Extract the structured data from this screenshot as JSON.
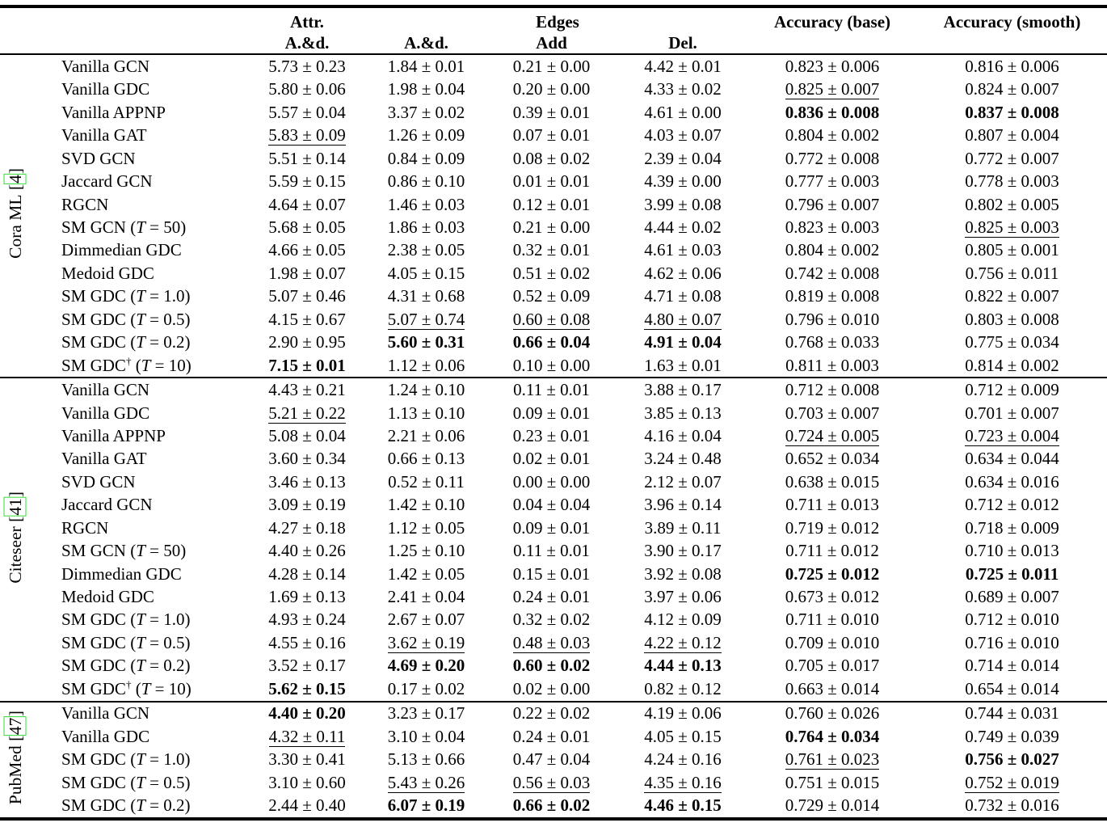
{
  "header": {
    "attr_top": "Attr.",
    "attr_sub": "A.&d.",
    "edges_top": "Edges",
    "edges_sub": [
      "A.&d.",
      "Add",
      "Del."
    ],
    "acc_base": "Accuracy (base)",
    "acc_smooth": "Accuracy (smooth)"
  },
  "symbols": {
    "dagger": "†",
    "t_var": "T",
    "bracket_open": "[",
    "bracket_close": "]"
  },
  "colors": {
    "link_green": "#33dd33",
    "text": "#000000",
    "background": "#ffffff"
  },
  "groups": [
    {
      "label": "Cora ML",
      "citation": "4",
      "rows": [
        {
          "m": "Vanilla GCN",
          "d": false,
          "t": null,
          "v": [
            "5.73 ± 0.23",
            "1.84 ± 0.01",
            "0.21 ± 0.00",
            "4.42 ± 0.01",
            "0.823 ± 0.006",
            "0.816 ± 0.006"
          ],
          "s": [
            "",
            "",
            "",
            "",
            "",
            ""
          ]
        },
        {
          "m": "Vanilla GDC",
          "d": false,
          "t": null,
          "v": [
            "5.80 ± 0.06",
            "1.98 ± 0.04",
            "0.20 ± 0.00",
            "4.33 ± 0.02",
            "0.825 ± 0.007",
            "0.824 ± 0.007"
          ],
          "s": [
            "",
            "",
            "",
            "",
            "u",
            ""
          ]
        },
        {
          "m": "Vanilla APPNP",
          "d": false,
          "t": null,
          "v": [
            "5.57 ± 0.04",
            "3.37 ± 0.02",
            "0.39 ± 0.01",
            "4.61 ± 0.00",
            "0.836 ± 0.008",
            "0.837 ± 0.008"
          ],
          "s": [
            "",
            "",
            "",
            "",
            "b",
            "b"
          ]
        },
        {
          "m": "Vanilla GAT",
          "d": false,
          "t": null,
          "v": [
            "5.83 ± 0.09",
            "1.26 ± 0.09",
            "0.07 ± 0.01",
            "4.03 ± 0.07",
            "0.804 ± 0.002",
            "0.807 ± 0.004"
          ],
          "s": [
            "u",
            "",
            "",
            "",
            "",
            ""
          ]
        },
        {
          "m": "SVD GCN",
          "d": false,
          "t": null,
          "v": [
            "5.51 ± 0.14",
            "0.84 ± 0.09",
            "0.08 ± 0.02",
            "2.39 ± 0.04",
            "0.772 ± 0.008",
            "0.772 ± 0.007"
          ],
          "s": [
            "",
            "",
            "",
            "",
            "",
            ""
          ]
        },
        {
          "m": "Jaccard GCN",
          "d": false,
          "t": null,
          "v": [
            "5.59 ± 0.15",
            "0.86 ± 0.10",
            "0.01 ± 0.01",
            "4.39 ± 0.00",
            "0.777 ± 0.003",
            "0.778 ± 0.003"
          ],
          "s": [
            "",
            "",
            "",
            "",
            "",
            ""
          ]
        },
        {
          "m": "RGCN",
          "d": false,
          "t": null,
          "v": [
            "4.64 ± 0.07",
            "1.46 ± 0.03",
            "0.12 ± 0.01",
            "3.99 ± 0.08",
            "0.796 ± 0.007",
            "0.802 ± 0.005"
          ],
          "s": [
            "",
            "",
            "",
            "",
            "",
            ""
          ]
        },
        {
          "m": "SM GCN",
          "d": false,
          "t": "50",
          "v": [
            "5.68 ± 0.05",
            "1.86 ± 0.03",
            "0.21 ± 0.00",
            "4.44 ± 0.02",
            "0.823 ± 0.003",
            "0.825 ± 0.003"
          ],
          "s": [
            "",
            "",
            "",
            "",
            "",
            "u"
          ]
        },
        {
          "m": "Dimmedian GDC",
          "d": false,
          "t": null,
          "v": [
            "4.66 ± 0.05",
            "2.38 ± 0.05",
            "0.32 ± 0.01",
            "4.61 ± 0.03",
            "0.804 ± 0.002",
            "0.805 ± 0.001"
          ],
          "s": [
            "",
            "",
            "",
            "",
            "",
            ""
          ]
        },
        {
          "m": "Medoid GDC",
          "d": false,
          "t": null,
          "v": [
            "1.98 ± 0.07",
            "4.05 ± 0.15",
            "0.51 ± 0.02",
            "4.62 ± 0.06",
            "0.742 ± 0.008",
            "0.756 ± 0.011"
          ],
          "s": [
            "",
            "",
            "",
            "",
            "",
            ""
          ]
        },
        {
          "m": "SM GDC",
          "d": false,
          "t": "1.0",
          "v": [
            "5.07 ± 0.46",
            "4.31 ± 0.68",
            "0.52 ± 0.09",
            "4.71 ± 0.08",
            "0.819 ± 0.008",
            "0.822 ± 0.007"
          ],
          "s": [
            "",
            "",
            "",
            "",
            "",
            ""
          ]
        },
        {
          "m": "SM GDC",
          "d": false,
          "t": "0.5",
          "v": [
            "4.15 ± 0.67",
            "5.07 ± 0.74",
            "0.60 ± 0.08",
            "4.80 ± 0.07",
            "0.796 ± 0.010",
            "0.803 ± 0.008"
          ],
          "s": [
            "",
            "u",
            "u",
            "u",
            "",
            ""
          ]
        },
        {
          "m": "SM GDC",
          "d": false,
          "t": "0.2",
          "v": [
            "2.90 ± 0.95",
            "5.60 ± 0.31",
            "0.66 ± 0.04",
            "4.91 ± 0.04",
            "0.768 ± 0.033",
            "0.775 ± 0.034"
          ],
          "s": [
            "",
            "b",
            "b",
            "b",
            "",
            ""
          ]
        },
        {
          "m": "SM GDC",
          "d": true,
          "t": "10",
          "v": [
            "7.15 ± 0.01",
            "1.12 ± 0.06",
            "0.10 ± 0.00",
            "1.63 ± 0.01",
            "0.811 ± 0.003",
            "0.814 ± 0.002"
          ],
          "s": [
            "b",
            "",
            "",
            "",
            "",
            ""
          ]
        }
      ]
    },
    {
      "label": "Citeseer",
      "citation": "41",
      "rows": [
        {
          "m": "Vanilla GCN",
          "d": false,
          "t": null,
          "v": [
            "4.43 ± 0.21",
            "1.24 ± 0.10",
            "0.11 ± 0.01",
            "3.88 ± 0.17",
            "0.712 ± 0.008",
            "0.712 ± 0.009"
          ],
          "s": [
            "",
            "",
            "",
            "",
            "",
            ""
          ]
        },
        {
          "m": "Vanilla GDC",
          "d": false,
          "t": null,
          "v": [
            "5.21 ± 0.22",
            "1.13 ± 0.10",
            "0.09 ± 0.01",
            "3.85 ± 0.13",
            "0.703 ± 0.007",
            "0.701 ± 0.007"
          ],
          "s": [
            "u",
            "",
            "",
            "",
            "",
            ""
          ]
        },
        {
          "m": "Vanilla APPNP",
          "d": false,
          "t": null,
          "v": [
            "5.08 ± 0.04",
            "2.21 ± 0.06",
            "0.23 ± 0.01",
            "4.16 ± 0.04",
            "0.724 ± 0.005",
            "0.723 ± 0.004"
          ],
          "s": [
            "",
            "",
            "",
            "",
            "u",
            "u"
          ]
        },
        {
          "m": "Vanilla GAT",
          "d": false,
          "t": null,
          "v": [
            "3.60 ± 0.34",
            "0.66 ± 0.13",
            "0.02 ± 0.01",
            "3.24 ± 0.48",
            "0.652 ± 0.034",
            "0.634 ± 0.044"
          ],
          "s": [
            "",
            "",
            "",
            "",
            "",
            ""
          ]
        },
        {
          "m": "SVD GCN",
          "d": false,
          "t": null,
          "v": [
            "3.46 ± 0.13",
            "0.52 ± 0.11",
            "0.00 ± 0.00",
            "2.12 ± 0.07",
            "0.638 ± 0.015",
            "0.634 ± 0.016"
          ],
          "s": [
            "",
            "",
            "",
            "",
            "",
            ""
          ]
        },
        {
          "m": "Jaccard GCN",
          "d": false,
          "t": null,
          "v": [
            "3.09 ± 0.19",
            "1.42 ± 0.10",
            "0.04 ± 0.04",
            "3.96 ± 0.14",
            "0.711 ± 0.013",
            "0.712 ± 0.012"
          ],
          "s": [
            "",
            "",
            "",
            "",
            "",
            ""
          ]
        },
        {
          "m": "RGCN",
          "d": false,
          "t": null,
          "v": [
            "4.27 ± 0.18",
            "1.12 ± 0.05",
            "0.09 ± 0.01",
            "3.89 ± 0.11",
            "0.719 ± 0.012",
            "0.718 ± 0.009"
          ],
          "s": [
            "",
            "",
            "",
            "",
            "",
            ""
          ]
        },
        {
          "m": "SM GCN",
          "d": false,
          "t": "50",
          "v": [
            "4.40 ± 0.26",
            "1.25 ± 0.10",
            "0.11 ± 0.01",
            "3.90 ± 0.17",
            "0.711 ± 0.012",
            "0.710 ± 0.013"
          ],
          "s": [
            "",
            "",
            "",
            "",
            "",
            ""
          ]
        },
        {
          "m": "Dimmedian GDC",
          "d": false,
          "t": null,
          "v": [
            "4.28 ± 0.14",
            "1.42 ± 0.05",
            "0.15 ± 0.01",
            "3.92 ± 0.08",
            "0.725 ± 0.012",
            "0.725 ± 0.011"
          ],
          "s": [
            "",
            "",
            "",
            "",
            "b",
            "b"
          ]
        },
        {
          "m": "Medoid GDC",
          "d": false,
          "t": null,
          "v": [
            "1.69 ± 0.13",
            "2.41 ± 0.04",
            "0.24 ± 0.01",
            "3.97 ± 0.06",
            "0.673 ± 0.012",
            "0.689 ± 0.007"
          ],
          "s": [
            "",
            "",
            "",
            "",
            "",
            ""
          ]
        },
        {
          "m": "SM GDC",
          "d": false,
          "t": "1.0",
          "v": [
            "4.93 ± 0.24",
            "2.67 ± 0.07",
            "0.32 ± 0.02",
            "4.12 ± 0.09",
            "0.711 ± 0.010",
            "0.712 ± 0.010"
          ],
          "s": [
            "",
            "",
            "",
            "",
            "",
            ""
          ]
        },
        {
          "m": "SM GDC",
          "d": false,
          "t": "0.5",
          "v": [
            "4.55 ± 0.16",
            "3.62 ± 0.19",
            "0.48 ± 0.03",
            "4.22 ± 0.12",
            "0.709 ± 0.010",
            "0.716 ± 0.010"
          ],
          "s": [
            "",
            "u",
            "u",
            "u",
            "",
            ""
          ]
        },
        {
          "m": "SM GDC",
          "d": false,
          "t": "0.2",
          "v": [
            "3.52 ± 0.17",
            "4.69 ± 0.20",
            "0.60 ± 0.02",
            "4.44 ± 0.13",
            "0.705 ± 0.017",
            "0.714 ± 0.014"
          ],
          "s": [
            "",
            "b",
            "b",
            "b",
            "",
            ""
          ]
        },
        {
          "m": "SM GDC",
          "d": true,
          "t": "10",
          "v": [
            "5.62 ± 0.15",
            "0.17 ± 0.02",
            "0.02 ± 0.00",
            "0.82 ± 0.12",
            "0.663 ± 0.014",
            "0.654 ± 0.014"
          ],
          "s": [
            "b",
            "",
            "",
            "",
            "",
            ""
          ]
        }
      ]
    },
    {
      "label": "PubMed",
      "citation": "47",
      "rows": [
        {
          "m": "Vanilla GCN",
          "d": false,
          "t": null,
          "v": [
            "4.40 ± 0.20",
            "3.23 ± 0.17",
            "0.22 ± 0.02",
            "4.19 ± 0.06",
            "0.760 ± 0.026",
            "0.744 ± 0.031"
          ],
          "s": [
            "b",
            "",
            "",
            "",
            "",
            ""
          ]
        },
        {
          "m": "Vanilla GDC",
          "d": false,
          "t": null,
          "v": [
            "4.32 ± 0.11",
            "3.10 ± 0.04",
            "0.24 ± 0.01",
            "4.05 ± 0.15",
            "0.764 ± 0.034",
            "0.749 ± 0.039"
          ],
          "s": [
            "u",
            "",
            "",
            "",
            "b",
            ""
          ]
        },
        {
          "m": "SM GDC",
          "d": false,
          "t": "1.0",
          "v": [
            "3.30 ± 0.41",
            "5.13 ± 0.66",
            "0.47 ± 0.04",
            "4.24 ± 0.16",
            "0.761 ± 0.023",
            "0.756 ± 0.027"
          ],
          "s": [
            "",
            "",
            "",
            "",
            "u",
            "b"
          ]
        },
        {
          "m": "SM GDC",
          "d": false,
          "t": "0.5",
          "v": [
            "3.10 ± 0.60",
            "5.43 ± 0.26",
            "0.56 ± 0.03",
            "4.35 ± 0.16",
            "0.751 ± 0.015",
            "0.752 ± 0.019"
          ],
          "s": [
            "",
            "u",
            "u",
            "u",
            "",
            "u"
          ]
        },
        {
          "m": "SM GDC",
          "d": false,
          "t": "0.2",
          "v": [
            "2.44 ± 0.40",
            "6.07 ± 0.19",
            "0.66 ± 0.02",
            "4.46 ± 0.15",
            "0.729 ± 0.014",
            "0.732 ± 0.016"
          ],
          "s": [
            "",
            "b",
            "b",
            "b",
            "",
            ""
          ]
        }
      ]
    }
  ]
}
